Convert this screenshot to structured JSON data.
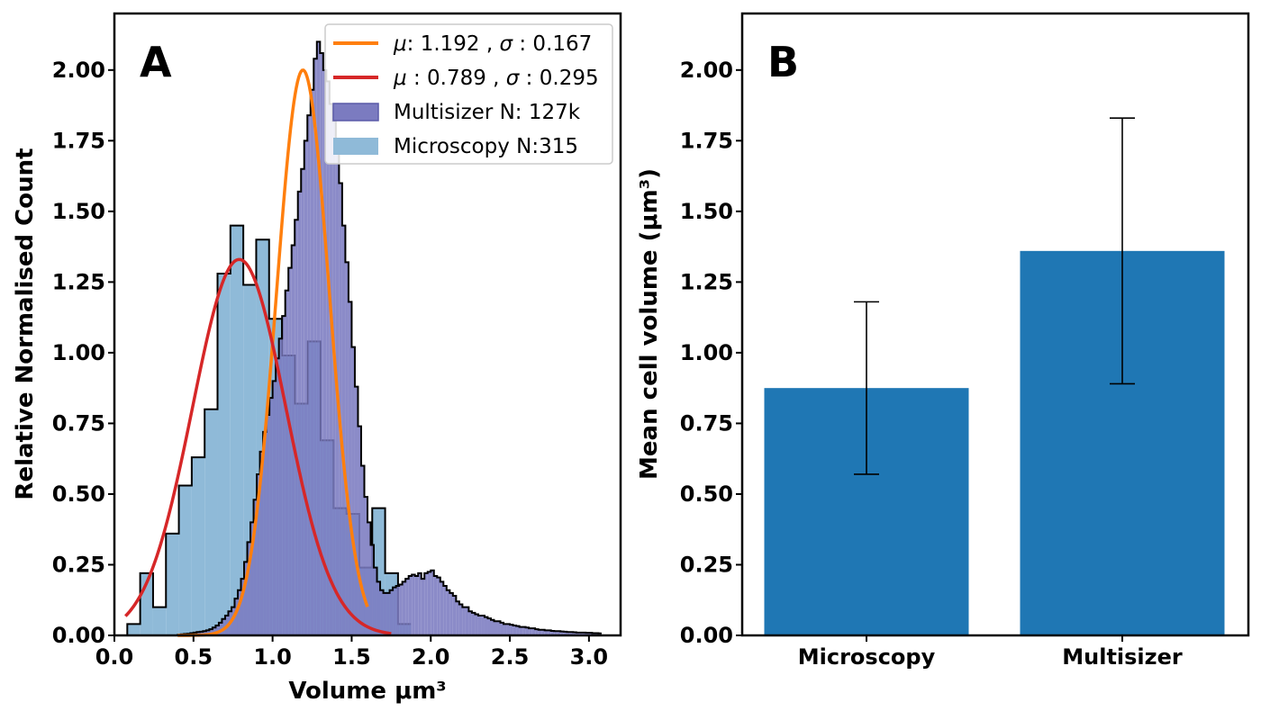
{
  "chart_data": [
    {
      "type": "histogram",
      "panel_label": "A",
      "xlabel": "Volume μm³",
      "ylabel": "Relative Normalised Count",
      "xlim": [
        0.0,
        3.2
      ],
      "ylim": [
        0.0,
        2.2
      ],
      "xticks": [
        "0.0",
        "0.5",
        "1.0",
        "1.5",
        "2.0",
        "2.5",
        "3.0"
      ],
      "yticks": [
        "0.00",
        "0.25",
        "0.50",
        "0.75",
        "1.00",
        "1.25",
        "1.50",
        "1.75",
        "2.00"
      ],
      "legend_position": "upper right",
      "legend": [
        {
          "label_parts": [
            {
              "text": "μ",
              "italic": true
            },
            {
              "text": ": 1.192 , ",
              "italic": false
            },
            {
              "text": "σ",
              "italic": true
            },
            {
              "text": " : 0.167",
              "italic": false
            }
          ],
          "kind": "line",
          "color": "#ff7f0e"
        },
        {
          "label_parts": [
            {
              "text": "μ",
              "italic": true
            },
            {
              "text": " : 0.789 , ",
              "italic": false
            },
            {
              "text": "σ",
              "italic": true
            },
            {
              "text": " : 0.295",
              "italic": false
            }
          ],
          "kind": "line",
          "color": "#d62728"
        },
        {
          "label_parts": [
            {
              "text": "Multisizer N: 127k",
              "italic": false
            }
          ],
          "kind": "patch",
          "color": "#7b7bc0"
        },
        {
          "label_parts": [
            {
              "text": "Microscopy N:315",
              "italic": false
            }
          ],
          "kind": "patch",
          "color": "#8fbad8"
        }
      ],
      "histograms": [
        {
          "name": "Multisizer N: 127k",
          "color": "#7b7bc0",
          "bin_width": 0.02,
          "x_start": 0.4,
          "values": [
            0.002,
            0.004,
            0.005,
            0.006,
            0.008,
            0.01,
            0.012,
            0.013,
            0.015,
            0.018,
            0.022,
            0.028,
            0.035,
            0.045,
            0.058,
            0.07,
            0.085,
            0.1,
            0.13,
            0.16,
            0.2,
            0.26,
            0.33,
            0.4,
            0.48,
            0.57,
            0.65,
            0.72,
            0.78,
            0.84,
            0.9,
            0.98,
            1.05,
            1.13,
            1.22,
            1.3,
            1.38,
            1.47,
            1.57,
            1.65,
            1.75,
            1.84,
            1.93,
            2.04,
            2.1,
            2.06,
            2.0,
            1.96,
            1.88,
            1.82,
            1.71,
            1.6,
            1.45,
            1.32,
            1.18,
            1.02,
            0.88,
            0.74,
            0.6,
            0.49,
            0.4,
            0.32,
            0.24,
            0.19,
            0.16,
            0.15,
            0.15,
            0.16,
            0.17,
            0.175,
            0.18,
            0.19,
            0.2,
            0.21,
            0.215,
            0.21,
            0.22,
            0.2,
            0.22,
            0.225,
            0.23,
            0.21,
            0.205,
            0.19,
            0.175,
            0.16,
            0.15,
            0.14,
            0.12,
            0.11,
            0.1,
            0.1,
            0.085,
            0.08,
            0.075,
            0.07,
            0.07,
            0.065,
            0.06,
            0.055,
            0.05,
            0.05,
            0.045,
            0.04,
            0.04,
            0.038,
            0.035,
            0.033,
            0.03,
            0.03,
            0.028,
            0.025,
            0.025,
            0.022,
            0.02,
            0.02,
            0.018,
            0.018,
            0.016,
            0.015,
            0.015,
            0.014,
            0.013,
            0.012,
            0.012,
            0.011,
            0.01,
            0.01,
            0.01,
            0.009,
            0.009,
            0.008,
            0.008,
            0.007
          ]
        },
        {
          "name": "Microscopy N:315",
          "color": "#8fbad8",
          "bin_width": 0.0815,
          "x_start": 0.0,
          "values": [
            0.0,
            0.04,
            0.22,
            0.1,
            0.36,
            0.53,
            0.63,
            0.8,
            1.28,
            1.45,
            1.24,
            1.4,
            1.12,
            0.99,
            0.82,
            1.04,
            0.69,
            0.45,
            0.43,
            0.24,
            0.45,
            0.22,
            0.04
          ]
        }
      ],
      "gaussian_fits": [
        {
          "mu": 1.192,
          "sigma": 0.167,
          "peak": 2.0,
          "x_range": [
            0.4,
            1.6
          ],
          "color": "#ff7f0e"
        },
        {
          "mu": 0.789,
          "sigma": 0.295,
          "peak": 1.33,
          "x_range": [
            0.07,
            1.75
          ],
          "color": "#d62728"
        }
      ]
    },
    {
      "type": "bar",
      "panel_label": "B",
      "categories": [
        "Microscopy",
        "Multisizer"
      ],
      "values": [
        0.875,
        1.36
      ],
      "errors": [
        0.305,
        0.47
      ],
      "color": "#1f77b4",
      "ylabel": "Mean cell volume (μm³)",
      "ylim": [
        0.0,
        2.2
      ],
      "yticks": [
        "0.00",
        "0.25",
        "0.50",
        "0.75",
        "1.00",
        "1.25",
        "1.50",
        "1.75",
        "2.00"
      ]
    }
  ]
}
